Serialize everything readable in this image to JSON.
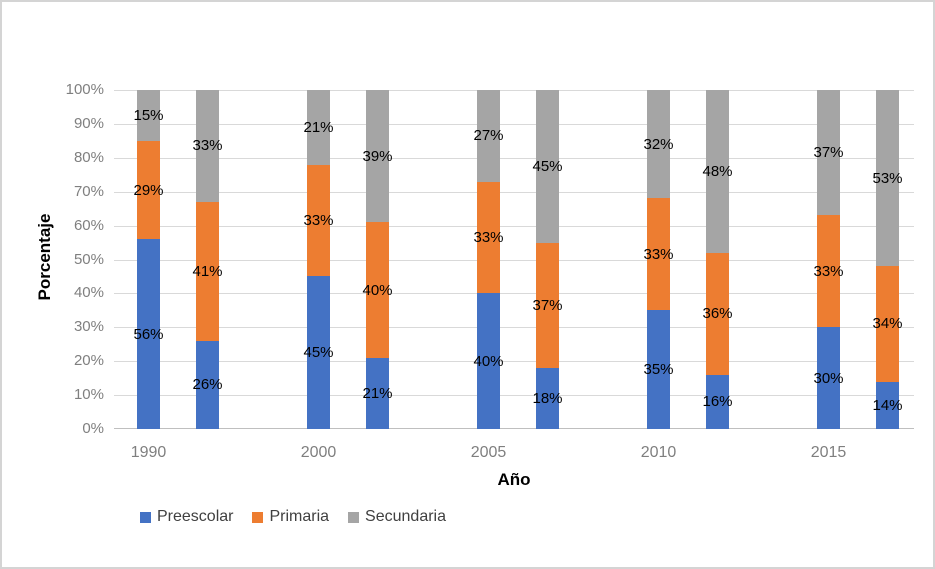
{
  "chart_data": {
    "type": "bar",
    "subtype": "stacked-100-percent",
    "title": "",
    "xlabel": "Año",
    "ylabel": "Porcentaje",
    "ylim": [
      0,
      100
    ],
    "grid": true,
    "y_ticks": [
      "0%",
      "10%",
      "20%",
      "30%",
      "40%",
      "50%",
      "60%",
      "70%",
      "80%",
      "90%",
      "100%"
    ],
    "categories": [
      "1990",
      "2000",
      "2005",
      "2010",
      "2015"
    ],
    "series": [
      {
        "name": "Preescolar",
        "color": "#4472C4"
      },
      {
        "name": "Primaria",
        "color": "#ED7D31"
      },
      {
        "name": "Secundaria",
        "color": "#A5A5A5"
      }
    ],
    "groups": [
      {
        "year": "1990",
        "bars": [
          [
            56,
            29,
            15
          ],
          [
            26,
            41,
            33
          ]
        ]
      },
      {
        "year": "2000",
        "bars": [
          [
            45,
            33,
            21
          ],
          [
            21,
            40,
            39
          ]
        ]
      },
      {
        "year": "2005",
        "bars": [
          [
            40,
            33,
            27
          ],
          [
            18,
            37,
            45
          ]
        ]
      },
      {
        "year": "2010",
        "bars": [
          [
            35,
            33,
            32
          ],
          [
            16,
            36,
            48
          ]
        ]
      },
      {
        "year": "2015",
        "bars": [
          [
            30,
            33,
            37
          ],
          [
            14,
            34,
            53
          ]
        ]
      }
    ],
    "legend": {
      "position": "bottom",
      "entries": [
        "Preescolar",
        "Primaria",
        "Secundaria"
      ]
    },
    "colors": {
      "gridline": "#D9D9D9",
      "axis_line": "#BFBFBF",
      "tick_label": "#7F7F7F",
      "category_label": "#7F7F7F",
      "data_label": "#000000",
      "axis_title": "#000000",
      "legend_text": "#404040",
      "frame_border": "#D4D4D4",
      "background": "#FFFFFF"
    }
  }
}
